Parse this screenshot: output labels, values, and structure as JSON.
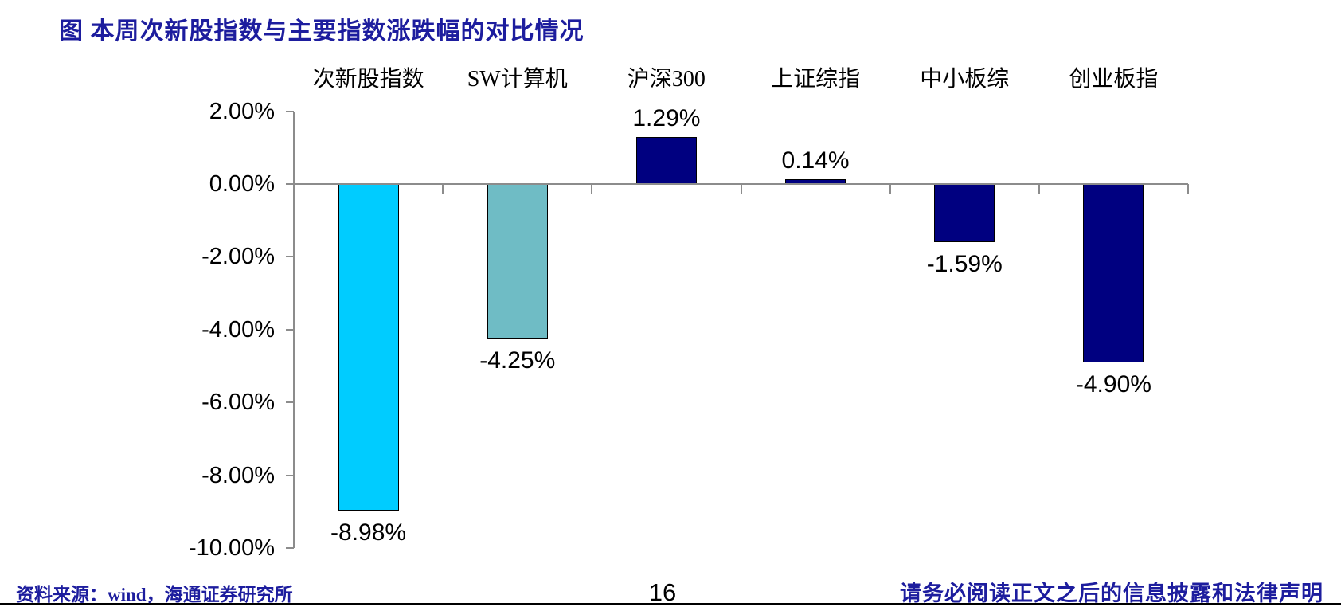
{
  "title": "图 本周次新股指数与主要指数涨跌幅的对比情况",
  "chart_data": {
    "type": "bar",
    "categories": [
      "次新股指数",
      "SW计算机",
      "沪深300",
      "上证综指",
      "中小板综",
      "创业板指"
    ],
    "values": [
      -8.98,
      -4.25,
      1.29,
      0.14,
      -1.59,
      -4.9
    ],
    "value_labels": [
      "-8.98%",
      "-4.25%",
      "1.29%",
      "0.14%",
      "-1.59%",
      "-4.90%"
    ],
    "bar_colors": [
      "#00ccff",
      "#6fbcc5",
      "#000080",
      "#000080",
      "#000080",
      "#000080"
    ],
    "title": "图 本周次新股指数与主要指数涨跌幅的对比情况",
    "xlabel": "",
    "ylabel": "",
    "ylim": [
      -10,
      2
    ],
    "ytick_labels": [
      "2.00%",
      "0.00%",
      "-2.00%",
      "-4.00%",
      "-6.00%",
      "-8.00%",
      "-10.00%"
    ],
    "ytick_values": [
      2,
      0,
      -2,
      -4,
      -6,
      -8,
      -10
    ],
    "grid": "zero-baseline-only",
    "legend_position": "none",
    "category_label_position": "top"
  },
  "footer": {
    "source": "资料来源：wind，海通证券研究所",
    "page_number": "16",
    "disclaimer": "请务必阅读正文之后的信息披露和法律声明"
  },
  "colors": {
    "accent_blue": "#1d1d9e",
    "bar_navy": "#000080",
    "bar_cyan": "#00ccff",
    "bar_teal": "#6fbcc5",
    "axis_gray": "#8c8c8c",
    "text_black": "#000000",
    "background": "#ffffff"
  }
}
